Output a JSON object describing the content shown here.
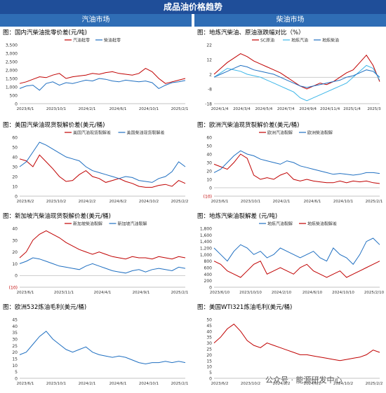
{
  "header": {
    "title": "成品油价格趋势",
    "left_section": "汽油市场",
    "right_section": "柴油市场"
  },
  "watermark": "公众号 · 能源研发中心",
  "colors": {
    "red": "#c00000",
    "blue": "#1f6fc1",
    "lightblue": "#3cb6e8",
    "darkred": "#8b0000",
    "header": "#1f4e99"
  },
  "chart_data": [
    {
      "id": "c1",
      "type": "line",
      "title": "图：国内汽柴油批零价差(元/吨)",
      "yticks": [
        "3,500",
        "3,000",
        "2,500",
        "2,000",
        "1,500",
        "1,000",
        "500",
        "0"
      ],
      "ylim": [
        0,
        3500
      ],
      "xticks": [
        "2023/6/1",
        "2023/10/1",
        "2024/2/1",
        "2024/6/1",
        "2024/10/1",
        "2025/2/1"
      ],
      "series": [
        {
          "name": "汽油批零",
          "color": "#c00000",
          "values": [
            1200,
            1300,
            1450,
            1600,
            1550,
            1700,
            1800,
            1500,
            1600,
            1650,
            1700,
            1800,
            1750,
            1850,
            1900,
            1800,
            1750,
            1700,
            1800,
            2100,
            1900,
            1500,
            1200,
            1300,
            1400,
            1500
          ]
        },
        {
          "name": "柴油批零",
          "color": "#1f6fc1",
          "values": [
            900,
            1050,
            1100,
            800,
            1200,
            1300,
            1100,
            1250,
            1200,
            1300,
            1400,
            1350,
            1500,
            1450,
            1350,
            1300,
            1400,
            1350,
            1300,
            1350,
            1250,
            900,
            1100,
            1250,
            1300,
            1380
          ]
        }
      ]
    },
    {
      "id": "c2",
      "type": "line",
      "title": "图：地炼汽柴油、原油涨跌幅对比（%）",
      "yticks": [
        "22",
        "12",
        "2",
        "-8",
        "-18"
      ],
      "ylim": [
        -18,
        22
      ],
      "xticks": [
        "2024/1/4",
        "2024/3/4",
        "2024/5/4",
        "2024/7/4",
        "2024/9/4",
        "2024/11/4",
        "2025/1/4",
        "2025/3"
      ],
      "series": [
        {
          "name": "SC原油",
          "color": "#c00000",
          "values": [
            2,
            6,
            10,
            13,
            16,
            14,
            11,
            9,
            7,
            5,
            3,
            0,
            -3,
            -6,
            -8,
            -6,
            -4,
            -5,
            -3,
            0,
            3,
            5,
            10,
            15,
            8,
            -3
          ]
        },
        {
          "name": "地炼汽油",
          "color": "#3cb6e8",
          "values": [
            0,
            3,
            6,
            5,
            4,
            2,
            1,
            0,
            -2,
            -4,
            -6,
            -8,
            -10,
            -14,
            -16,
            -14,
            -12,
            -10,
            -8,
            -6,
            -4,
            0,
            4,
            8,
            6,
            -2
          ]
        },
        {
          "name": "地炼柴油",
          "color": "#1f6fc1",
          "values": [
            0,
            2,
            4,
            6,
            8,
            7,
            5,
            4,
            3,
            2,
            0,
            -2,
            -4,
            -6,
            -7,
            -6,
            -5,
            -4,
            -3,
            -2,
            0,
            1,
            3,
            5,
            4,
            0
          ]
        }
      ]
    },
    {
      "id": "c3",
      "type": "line",
      "title": "图：美国汽柴油现货裂解价差(美元/桶)",
      "yticks": [
        "60",
        "50",
        "40",
        "30",
        "20",
        "10",
        "0"
      ],
      "ylim": [
        0,
        60
      ],
      "xticks": [
        "2023/6/2",
        "2023/10/2",
        "2024/2/2",
        "2024/6/2",
        "2024/10/2",
        "2025/2/2"
      ],
      "series": [
        {
          "name": "美国汽油现货裂解差",
          "color": "#c00000",
          "values": [
            38,
            36,
            30,
            42,
            35,
            28,
            20,
            15,
            16,
            22,
            26,
            20,
            18,
            14,
            16,
            18,
            15,
            13,
            10,
            9,
            9,
            11,
            12,
            10,
            16,
            13
          ]
        },
        {
          "name": "美国柴油现货裂解差",
          "color": "#1f6fc1",
          "values": [
            30,
            35,
            45,
            55,
            52,
            48,
            44,
            40,
            38,
            36,
            30,
            26,
            24,
            22,
            20,
            18,
            20,
            19,
            16,
            15,
            14,
            18,
            20,
            25,
            35,
            30
          ]
        }
      ]
    },
    {
      "id": "c4",
      "type": "line",
      "title": "图：欧洲汽柴油现货裂解价差(美元/桶)",
      "yticks": [
        "60",
        "50",
        "40",
        "30",
        "20",
        "10",
        "0",
        "(10)"
      ],
      "ylim": [
        -10,
        60
      ],
      "xticks": [
        "2023/6/1",
        "2023/10/1",
        "2024/2/1",
        "2024/6/1",
        "2024/10/1",
        "2025/2/1"
      ],
      "series": [
        {
          "name": "欧洲汽油裂解",
          "color": "#c00000",
          "values": [
            28,
            25,
            22,
            30,
            40,
            35,
            15,
            10,
            12,
            10,
            15,
            18,
            10,
            8,
            10,
            8,
            7,
            6,
            6,
            8,
            6,
            8,
            7,
            8,
            6,
            5
          ]
        },
        {
          "name": "欧洲柴油裂解",
          "color": "#1f6fc1",
          "values": [
            18,
            22,
            30,
            38,
            44,
            40,
            38,
            34,
            32,
            30,
            28,
            32,
            30,
            26,
            24,
            22,
            20,
            18,
            16,
            17,
            16,
            15,
            16,
            18,
            18,
            17
          ]
        }
      ]
    },
    {
      "id": "c5",
      "type": "line",
      "title": "图：新加坡汽柴油现货裂解价差(美元/桶)",
      "yticks": [
        "40",
        "30",
        "20",
        "10",
        "0",
        "(10)"
      ],
      "ylim": [
        -10,
        40
      ],
      "xticks": [
        "2023/6/1",
        "2023/11/1",
        "2024/4/1",
        "2024/9/1",
        "2025/2/1"
      ],
      "series": [
        {
          "name": "新加坡柴油裂解",
          "color": "#c00000",
          "values": [
            15,
            20,
            30,
            35,
            38,
            35,
            32,
            28,
            25,
            22,
            20,
            18,
            20,
            18,
            16,
            15,
            14,
            16,
            15,
            15,
            14,
            16,
            15,
            14,
            16,
            15
          ]
        },
        {
          "name": "新加坡汽油裂解",
          "color": "#1f6fc1",
          "values": [
            10,
            12,
            15,
            14,
            12,
            10,
            8,
            7,
            6,
            5,
            8,
            10,
            8,
            6,
            4,
            3,
            2,
            4,
            5,
            3,
            5,
            6,
            5,
            4,
            7,
            6
          ]
        }
      ]
    },
    {
      "id": "c6",
      "type": "line",
      "title": "图：地炼汽柴油裂解差 (元/吨)",
      "yticks": [
        "1,800",
        "1,600",
        "1,400",
        "1,200",
        "1,000",
        "800",
        "600",
        "400",
        "200",
        "0"
      ],
      "ylim": [
        0,
        1800
      ],
      "xticks": [
        "2023/6/10",
        "2023/10/10",
        "2024/2/10",
        "2024/6/10",
        "2024/10/10",
        "2025/2/10"
      ],
      "series": [
        {
          "name": "地炼汽油裂解",
          "color": "#1f6fc1",
          "values": [
            1200,
            1000,
            800,
            1100,
            1300,
            1200,
            1000,
            1100,
            900,
            1000,
            1200,
            1100,
            1000,
            900,
            1000,
            1100,
            900,
            800,
            1200,
            1000,
            900,
            700,
            1000,
            1400,
            1500,
            1300
          ]
        },
        {
          "name": "地炼柴油裂解差",
          "color": "#c00000",
          "values": [
            800,
            700,
            500,
            400,
            300,
            500,
            700,
            800,
            400,
            500,
            600,
            500,
            400,
            600,
            700,
            500,
            400,
            300,
            400,
            500,
            300,
            400,
            500,
            600,
            700,
            800
          ]
        }
      ]
    },
    {
      "id": "c7",
      "type": "line",
      "title": "图：欧洲532炼油毛利(美元/桶)",
      "yticks": [
        "45",
        "40",
        "35",
        "30",
        "25",
        "20",
        "15",
        "10",
        "5",
        "0"
      ],
      "ylim": [
        0,
        45
      ],
      "xticks": [
        "2023/6/1",
        "2023/10/1",
        "2024/2/1",
        "2024/6/1",
        "2024/10/1",
        "2025/2/1"
      ],
      "series": [
        {
          "name": "",
          "color": "#1f6fc1",
          "values": [
            18,
            20,
            26,
            32,
            36,
            30,
            26,
            22,
            20,
            22,
            24,
            20,
            18,
            17,
            16,
            17,
            16,
            14,
            12,
            11,
            12,
            12,
            13,
            12,
            13,
            12
          ]
        }
      ]
    },
    {
      "id": "c8",
      "type": "line",
      "title": "图：美国WTI321炼油毛利(美元/桶)",
      "yticks": [
        "50",
        "45",
        "40",
        "35",
        "30",
        "25",
        "20",
        "15",
        "10",
        "5",
        "0"
      ],
      "ylim": [
        0,
        50
      ],
      "xticks": [
        "2023/6/2",
        "2023/10/2",
        "2024/2/2",
        "2024/6/2",
        "2024/10/2",
        "2025/2/2"
      ],
      "series": [
        {
          "name": "",
          "color": "#c00000",
          "values": [
            30,
            35,
            42,
            46,
            40,
            32,
            28,
            26,
            30,
            28,
            26,
            24,
            22,
            20,
            20,
            19,
            18,
            17,
            16,
            15,
            16,
            17,
            18,
            20,
            24,
            22
          ]
        }
      ]
    }
  ]
}
